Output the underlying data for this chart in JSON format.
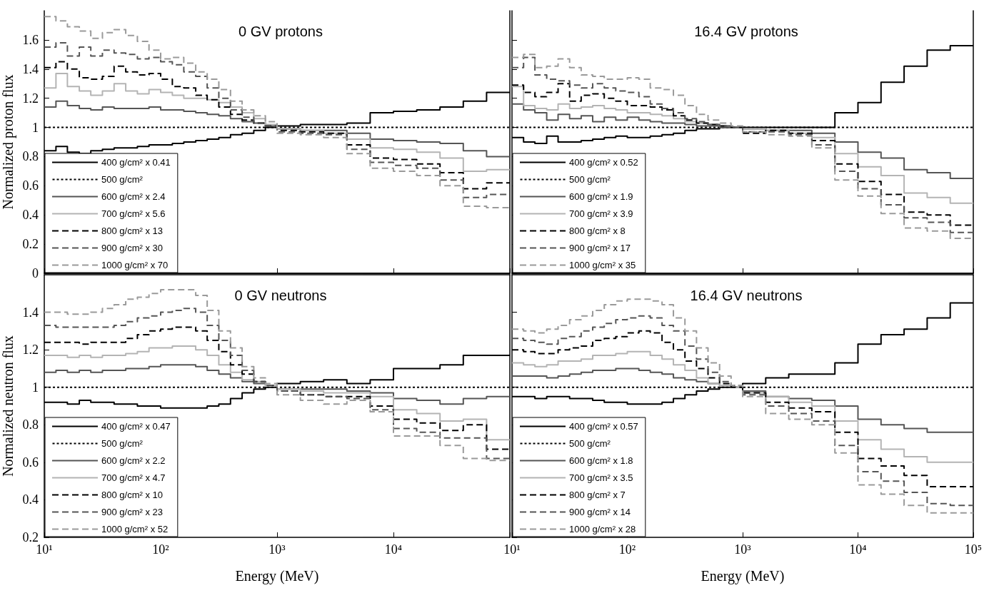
{
  "chart_data": [
    {
      "type": "step",
      "title": "0 GV protons",
      "ylabel": "Normalized proton flux",
      "legend": "bottom left",
      "tick_labels": "y",
      "log": "x",
      "x": [
        10,
        12.6,
        15.8,
        20,
        25.1,
        31.6,
        39.8,
        50.1,
        63.1,
        79.4,
        100,
        126,
        158,
        200,
        251,
        316,
        398,
        501,
        631,
        794,
        1000,
        1585,
        2512,
        3981,
        6310,
        10000,
        15849,
        25119,
        39811,
        63096,
        100000
      ],
      "xlim": [
        10,
        100000
      ],
      "xticks": [
        {
          "value": 10,
          "label": null
        },
        {
          "value": 100,
          "label": null
        },
        {
          "value": 1000,
          "label": null
        },
        {
          "value": 10000,
          "label": null
        },
        {
          "value": 100000,
          "label": null
        }
      ],
      "ylim": [
        0,
        1.8
      ],
      "yticks": [
        0,
        0.2,
        0.4,
        0.6,
        0.8,
        1,
        1.2,
        1.4,
        1.6
      ],
      "series": [
        {
          "name": "400 g/cm² x 0.41",
          "color": "#000000",
          "line_style": "solid",
          "values": [
            0.84,
            0.84,
            0.87,
            0.83,
            0.82,
            0.84,
            0.85,
            0.86,
            0.86,
            0.87,
            0.88,
            0.88,
            0.89,
            0.9,
            0.91,
            0.92,
            0.93,
            0.95,
            0.96,
            0.98,
            1,
            1.01,
            1.02,
            1.02,
            1.03,
            1.1,
            1.11,
            1.12,
            1.14,
            1.18,
            1.24
          ]
        },
        {
          "name": "500 g/cm²",
          "color": "#000000",
          "line_style": "dotted",
          "values": [
            1,
            1,
            1,
            1,
            1,
            1,
            1,
            1,
            1,
            1,
            1,
            1,
            1,
            1,
            1,
            1,
            1,
            1,
            1,
            1,
            1,
            1,
            1,
            1,
            1,
            1,
            1,
            1,
            1,
            1,
            1
          ]
        },
        {
          "name": "600 g/cm² x 2.4",
          "color": "#555555",
          "line_style": "solid",
          "values": [
            1.14,
            1.14,
            1.18,
            1.15,
            1.13,
            1.12,
            1.14,
            1.13,
            1.13,
            1.13,
            1.14,
            1.12,
            1.12,
            1.11,
            1.1,
            1.09,
            1.08,
            1.06,
            1.04,
            1.03,
            1.01,
            0.99,
            0.98,
            0.98,
            0.96,
            0.92,
            0.91,
            0.9,
            0.89,
            0.84,
            0.8
          ]
        },
        {
          "name": "700 g/cm² x 5.6",
          "color": "#b4b4b4",
          "line_style": "solid",
          "values": [
            1.27,
            1.27,
            1.37,
            1.28,
            1.25,
            1.22,
            1.25,
            1.3,
            1.25,
            1.23,
            1.26,
            1.24,
            1.22,
            1.2,
            1.2,
            1.19,
            1.17,
            1.14,
            1.1,
            1.06,
            1.02,
            0.99,
            0.98,
            0.96,
            0.92,
            0.86,
            0.85,
            0.83,
            0.79,
            0.7,
            0.71
          ]
        },
        {
          "name": "800 g/cm² x 13",
          "color": "#000000",
          "line_style": "dashed",
          "values": [
            1.41,
            1.41,
            1.45,
            1.4,
            1.34,
            1.33,
            1.35,
            1.42,
            1.38,
            1.36,
            1.37,
            1.33,
            1.28,
            1.27,
            1.22,
            1.19,
            1.14,
            1.09,
            1.05,
            1.03,
            1.01,
            0.98,
            0.97,
            0.96,
            0.88,
            0.79,
            0.78,
            0.75,
            0.69,
            0.58,
            0.62
          ]
        },
        {
          "name": "900 g/cm² x 30",
          "color": "#555555",
          "line_style": "dashed",
          "values": [
            1.55,
            1.55,
            1.58,
            1.49,
            1.55,
            1.49,
            1.53,
            1.51,
            1.5,
            1.47,
            1.48,
            1.45,
            1.43,
            1.38,
            1.35,
            1.27,
            1.2,
            1.12,
            1.07,
            1.03,
            1.01,
            0.97,
            0.96,
            0.95,
            0.85,
            0.76,
            0.74,
            0.72,
            0.64,
            0.52,
            0.54
          ]
        },
        {
          "name": "1000 g/cm² x 70",
          "color": "#9a9a9a",
          "line_style": "dashed",
          "values": [
            1.76,
            1.76,
            1.73,
            1.69,
            1.66,
            1.61,
            1.65,
            1.67,
            1.63,
            1.59,
            1.53,
            1.47,
            1.48,
            1.44,
            1.38,
            1.33,
            1.26,
            1.18,
            1.12,
            1.08,
            1.04,
            0.96,
            0.95,
            0.93,
            0.82,
            0.72,
            0.7,
            0.67,
            0.6,
            0.46,
            0.45
          ]
        }
      ]
    },
    {
      "type": "step",
      "title": "16.4 GV protons",
      "legend": "bottom left",
      "tick_labels": false,
      "log": "x",
      "x": [
        10,
        12.6,
        15.8,
        20,
        25.1,
        31.6,
        39.8,
        50.1,
        63.1,
        79.4,
        100,
        126,
        158,
        200,
        251,
        316,
        398,
        501,
        631,
        794,
        1000,
        1585,
        2512,
        3981,
        6310,
        10000,
        15849,
        25119,
        39811,
        63096,
        100000
      ],
      "xlim": [
        10,
        100000
      ],
      "xticks": [
        {
          "value": 10,
          "label": null
        },
        {
          "value": 100,
          "label": null
        },
        {
          "value": 1000,
          "label": null
        },
        {
          "value": 10000,
          "label": null
        },
        {
          "value": 100000,
          "label": null
        }
      ],
      "ylim": [
        0,
        1.8
      ],
      "yticks": [
        0,
        0.2,
        0.4,
        0.6,
        0.8,
        1,
        1.2,
        1.4,
        1.6
      ],
      "series": [
        {
          "name": "400 g/cm² x 0.52",
          "color": "#000000",
          "line_style": "solid",
          "values": [
            0.93,
            0.93,
            0.9,
            0.89,
            0.94,
            0.9,
            0.9,
            0.91,
            0.92,
            0.93,
            0.94,
            0.93,
            0.93,
            0.94,
            0.95,
            0.96,
            0.98,
            0.99,
            0.99,
            1,
            1,
            1,
            1,
            1,
            1,
            1.1,
            1.17,
            1.31,
            1.42,
            1.53,
            1.56
          ]
        },
        {
          "name": "500 g/cm²",
          "color": "#000000",
          "line_style": "dotted",
          "values": [
            1,
            1,
            1,
            1,
            1,
            1,
            1,
            1,
            1,
            1,
            1,
            1,
            1,
            1,
            1,
            1,
            1,
            1,
            1,
            1,
            1,
            1,
            1,
            1,
            1,
            1,
            1,
            1,
            1,
            1,
            1
          ]
        },
        {
          "name": "600 g/cm² x 1.9",
          "color": "#555555",
          "line_style": "solid",
          "values": [
            1.16,
            1.16,
            1.12,
            1.1,
            1.05,
            1.09,
            1.06,
            1.08,
            1.04,
            1.07,
            1.05,
            1.07,
            1.05,
            1.04,
            1.03,
            1.03,
            1.02,
            1.01,
            1.01,
            1,
            1,
            0.99,
            0.98,
            0.98,
            0.96,
            0.9,
            0.83,
            0.79,
            0.71,
            0.69,
            0.65
          ]
        },
        {
          "name": "700 g/cm² x 3.9",
          "color": "#b4b4b4",
          "line_style": "solid",
          "values": [
            1.28,
            1.28,
            1.15,
            1.13,
            1.12,
            1.16,
            1.13,
            1.14,
            1.15,
            1.13,
            1.12,
            1.1,
            1.1,
            1.09,
            1.08,
            1.06,
            1.04,
            1.03,
            1.02,
            1.01,
            1,
            0.99,
            0.98,
            0.96,
            0.93,
            0.82,
            0.73,
            0.67,
            0.55,
            0.52,
            0.48
          ]
        },
        {
          "name": "800 g/cm² x 8",
          "color": "#000000",
          "line_style": "dashed",
          "values": [
            1.29,
            1.29,
            1.24,
            1.21,
            1.24,
            1.3,
            1.18,
            1.22,
            1.23,
            1.2,
            1.18,
            1.15,
            1.15,
            1.14,
            1.12,
            1.08,
            1.05,
            1.03,
            1.02,
            1.01,
            1,
            0.96,
            0.98,
            0.96,
            0.91,
            0.75,
            0.63,
            0.54,
            0.42,
            0.4,
            0.33
          ]
        },
        {
          "name": "900 g/cm² x 17",
          "color": "#555555",
          "line_style": "dashed",
          "values": [
            1.41,
            1.41,
            1.48,
            1.36,
            1.33,
            1.32,
            1.29,
            1.27,
            1.3,
            1.27,
            1.25,
            1.24,
            1.21,
            1.16,
            1.13,
            1.1,
            1.06,
            1.04,
            1.02,
            1.01,
            1,
            0.97,
            0.97,
            0.95,
            0.88,
            0.7,
            0.58,
            0.47,
            0.38,
            0.35,
            0.28
          ]
        },
        {
          "name": "1000 g/cm² x 35",
          "color": "#9a9a9a",
          "line_style": "dashed",
          "values": [
            1.48,
            1.48,
            1.5,
            1.41,
            1.42,
            1.47,
            1.41,
            1.36,
            1.35,
            1.33,
            1.33,
            1.34,
            1.33,
            1.27,
            1.26,
            1.22,
            1.15,
            1.09,
            1.05,
            1.03,
            1.01,
            0.97,
            0.95,
            0.94,
            0.86,
            0.64,
            0.53,
            0.41,
            0.31,
            0.29,
            0.24
          ]
        }
      ]
    },
    {
      "type": "step",
      "title": "0 GV neutrons",
      "xlabel": "Energy (MeV)",
      "ylabel": "Normalized neutron flux",
      "legend": "bottom left",
      "log": "x",
      "x": [
        10,
        12.6,
        15.8,
        20,
        25.1,
        31.6,
        39.8,
        50.1,
        63.1,
        79.4,
        100,
        126,
        158,
        200,
        251,
        316,
        398,
        501,
        631,
        794,
        1000,
        1585,
        2512,
        3981,
        6310,
        10000,
        15849,
        25119,
        39811,
        63096,
        100000
      ],
      "xlim": [
        10,
        100000
      ],
      "xticks": [
        {
          "value": 10,
          "label": "10¹"
        },
        {
          "value": 100,
          "label": "10²"
        },
        {
          "value": 1000,
          "label": "10³"
        },
        {
          "value": 10000,
          "label": "10⁴"
        },
        {
          "value": 100000,
          "label": null
        }
      ],
      "ylim": [
        0.2,
        1.6
      ],
      "yticks": [
        0.2,
        0.4,
        0.6,
        0.8,
        1,
        1.2,
        1.4
      ],
      "series": [
        {
          "name": "400 g/cm² x 0.47",
          "color": "#000000",
          "line_style": "solid",
          "values": [
            0.92,
            0.92,
            0.92,
            0.91,
            0.93,
            0.92,
            0.92,
            0.91,
            0.91,
            0.9,
            0.9,
            0.89,
            0.89,
            0.89,
            0.89,
            0.9,
            0.91,
            0.94,
            0.97,
            0.99,
            1,
            1.02,
            1.03,
            1.04,
            1.02,
            1.04,
            1.1,
            1.1,
            1.12,
            1.17,
            1.17
          ]
        },
        {
          "name": "500 g/cm²",
          "color": "#000000",
          "line_style": "dotted",
          "values": [
            1,
            1,
            1,
            1,
            1,
            1,
            1,
            1,
            1,
            1,
            1,
            1,
            1,
            1,
            1,
            1,
            1,
            1,
            1,
            1,
            1,
            1,
            1,
            1,
            1,
            1,
            1,
            1,
            1,
            1,
            1
          ]
        },
        {
          "name": "600 g/cm² x 2.2",
          "color": "#555555",
          "line_style": "solid",
          "values": [
            1.08,
            1.08,
            1.09,
            1.08,
            1.09,
            1.08,
            1.09,
            1.09,
            1.1,
            1.1,
            1.11,
            1.12,
            1.12,
            1.12,
            1.11,
            1.09,
            1.07,
            1.05,
            1.03,
            1.02,
            1.01,
            0.99,
            0.99,
            0.99,
            0.98,
            0.97,
            0.94,
            0.93,
            0.91,
            0.94,
            0.95
          ]
        },
        {
          "name": "700 g/cm² x 4.7",
          "color": "#b4b4b4",
          "line_style": "solid",
          "values": [
            1.17,
            1.17,
            1.17,
            1.16,
            1.17,
            1.16,
            1.17,
            1.17,
            1.18,
            1.19,
            1.21,
            1.21,
            1.22,
            1.22,
            1.2,
            1.17,
            1.12,
            1.08,
            1.04,
            1.03,
            1.01,
            0.99,
            0.98,
            0.97,
            0.97,
            0.95,
            0.88,
            0.86,
            0.82,
            0.83,
            0.72
          ]
        },
        {
          "name": "800 g/cm² x 10",
          "color": "#000000",
          "line_style": "dashed",
          "values": [
            1.24,
            1.24,
            1.24,
            1.24,
            1.23,
            1.24,
            1.24,
            1.24,
            1.26,
            1.28,
            1.3,
            1.31,
            1.32,
            1.32,
            1.3,
            1.25,
            1.19,
            1.12,
            1.07,
            1.03,
            1.01,
            0.98,
            0.96,
            0.95,
            0.95,
            0.9,
            0.83,
            0.81,
            0.77,
            0.8,
            0.67
          ]
        },
        {
          "name": "900 g/cm² x 23",
          "color": "#555555",
          "line_style": "dashed",
          "values": [
            1.33,
            1.33,
            1.32,
            1.32,
            1.32,
            1.32,
            1.32,
            1.33,
            1.35,
            1.37,
            1.38,
            1.4,
            1.41,
            1.42,
            1.4,
            1.33,
            1.25,
            1.17,
            1.09,
            1.03,
            1.01,
            0.98,
            0.96,
            0.95,
            0.94,
            0.88,
            0.78,
            0.76,
            0.73,
            0.73,
            0.62
          ]
        },
        {
          "name": "1000 g/cm² x 52",
          "color": "#9a9a9a",
          "line_style": "dashed",
          "values": [
            1.4,
            1.4,
            1.4,
            1.39,
            1.39,
            1.4,
            1.42,
            1.44,
            1.47,
            1.48,
            1.5,
            1.52,
            1.52,
            1.52,
            1.49,
            1.41,
            1.3,
            1.21,
            1.11,
            1.05,
            1.02,
            0.96,
            0.93,
            0.91,
            0.93,
            0.87,
            0.74,
            0.74,
            0.69,
            0.62,
            0.61
          ]
        }
      ]
    },
    {
      "type": "step",
      "title": "16.4 GV neutrons",
      "xlabel": "Energy (MeV)",
      "legend": "bottom left",
      "tick_labels": "x",
      "log": "x",
      "x": [
        10,
        12.6,
        15.8,
        20,
        25.1,
        31.6,
        39.8,
        50.1,
        63.1,
        79.4,
        100,
        126,
        158,
        200,
        251,
        316,
        398,
        501,
        631,
        794,
        1000,
        1585,
        2512,
        3981,
        6310,
        10000,
        15849,
        25119,
        39811,
        63096,
        100000
      ],
      "xlim": [
        10,
        100000
      ],
      "xticks": [
        {
          "value": 10,
          "label": "10¹"
        },
        {
          "value": 100,
          "label": "10²"
        },
        {
          "value": 1000,
          "label": "10³"
        },
        {
          "value": 10000,
          "label": "10⁴"
        },
        {
          "value": 100000,
          "label": "10⁵"
        }
      ],
      "ylim": [
        0.2,
        1.6
      ],
      "yticks": [
        0.2,
        0.4,
        0.6,
        0.8,
        1,
        1.2,
        1.4
      ],
      "series": [
        {
          "name": "400 g/cm² x 0.57",
          "color": "#000000",
          "line_style": "solid",
          "values": [
            0.95,
            0.95,
            0.95,
            0.94,
            0.95,
            0.95,
            0.94,
            0.94,
            0.93,
            0.92,
            0.92,
            0.91,
            0.91,
            0.91,
            0.92,
            0.94,
            0.96,
            0.98,
            0.99,
            1,
            1,
            1.02,
            1.05,
            1.07,
            1.07,
            1.13,
            1.23,
            1.28,
            1.31,
            1.37,
            1.45
          ]
        },
        {
          "name": "500 g/cm²",
          "color": "#000000",
          "line_style": "dotted",
          "values": [
            1,
            1,
            1,
            1,
            1,
            1,
            1,
            1,
            1,
            1,
            1,
            1,
            1,
            1,
            1,
            1,
            1,
            1,
            1,
            1,
            1,
            1,
            1,
            1,
            1,
            1,
            1,
            1,
            1,
            1,
            1
          ]
        },
        {
          "name": "600 g/cm² x 1.8",
          "color": "#555555",
          "line_style": "solid",
          "values": [
            1.06,
            1.06,
            1.06,
            1.06,
            1.05,
            1.06,
            1.07,
            1.08,
            1.09,
            1.09,
            1.1,
            1.1,
            1.09,
            1.08,
            1.07,
            1.05,
            1.04,
            1.03,
            1.02,
            1.01,
            1,
            0.98,
            0.95,
            0.94,
            0.93,
            0.9,
            0.83,
            0.8,
            0.78,
            0.76,
            0.76
          ]
        },
        {
          "name": "700 g/cm² x 3.5",
          "color": "#b4b4b4",
          "line_style": "solid",
          "values": [
            1.13,
            1.13,
            1.12,
            1.11,
            1.12,
            1.14,
            1.14,
            1.15,
            1.17,
            1.17,
            1.18,
            1.19,
            1.19,
            1.17,
            1.15,
            1.12,
            1.09,
            1.05,
            1.02,
            1.01,
            1,
            0.97,
            0.95,
            0.92,
            0.9,
            0.82,
            0.72,
            0.67,
            0.63,
            0.6,
            0.6
          ]
        },
        {
          "name": "800 g/cm² x 7",
          "color": "#000000",
          "line_style": "dashed",
          "values": [
            1.2,
            1.2,
            1.19,
            1.18,
            1.18,
            1.2,
            1.21,
            1.22,
            1.25,
            1.26,
            1.27,
            1.29,
            1.3,
            1.29,
            1.24,
            1.2,
            1.14,
            1.1,
            1.05,
            1.02,
            1,
            0.97,
            0.92,
            0.89,
            0.87,
            0.76,
            0.62,
            0.58,
            0.53,
            0.47,
            0.47
          ]
        },
        {
          "name": "900 g/cm² x 14",
          "color": "#555555",
          "line_style": "dashed",
          "values": [
            1.26,
            1.26,
            1.25,
            1.24,
            1.23,
            1.26,
            1.27,
            1.3,
            1.32,
            1.34,
            1.36,
            1.37,
            1.38,
            1.37,
            1.33,
            1.3,
            1.22,
            1.15,
            1.08,
            1.03,
            1.01,
            0.96,
            0.9,
            0.86,
            0.82,
            0.69,
            0.55,
            0.5,
            0.44,
            0.38,
            0.37
          ]
        },
        {
          "name": "1000 g/cm² x 28",
          "color": "#9a9a9a",
          "line_style": "dashed",
          "values": [
            1.31,
            1.31,
            1.3,
            1.29,
            1.31,
            1.33,
            1.36,
            1.38,
            1.41,
            1.44,
            1.46,
            1.47,
            1.47,
            1.46,
            1.44,
            1.37,
            1.3,
            1.21,
            1.13,
            1.06,
            1.01,
            0.95,
            0.86,
            0.83,
            0.8,
            0.65,
            0.48,
            0.43,
            0.37,
            0.33,
            0.33
          ]
        }
      ]
    }
  ]
}
